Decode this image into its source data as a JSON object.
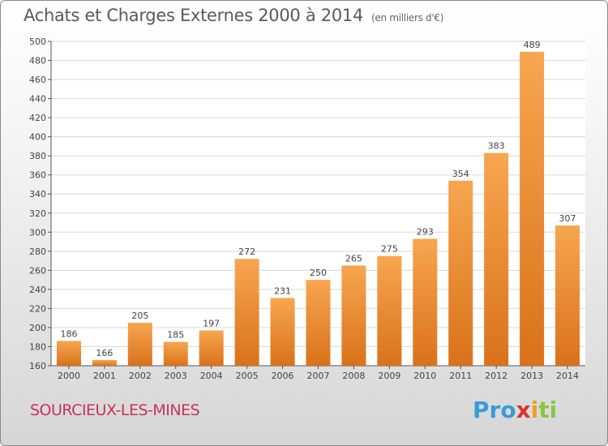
{
  "header": {
    "title": "Achats et Charges Externes 2000 à 2014",
    "subtitle": "(en milliers d'€)"
  },
  "footer": {
    "commune": "SOURCIEUX-LES-MINES",
    "logo_parts": [
      "Pro",
      "x",
      "i",
      "ti"
    ]
  },
  "colors": {
    "bar_light": "#f7a650",
    "bar_dark": "#d9721a",
    "commune_text": "#c8325f"
  },
  "chart_data": {
    "type": "bar",
    "title": "Achats et Charges Externes 2000 à 2014",
    "subtitle": "(en milliers d'€)",
    "xlabel": "",
    "ylabel": "",
    "categories": [
      "2000",
      "2001",
      "2002",
      "2003",
      "2004",
      "2005",
      "2006",
      "2007",
      "2008",
      "2009",
      "2010",
      "2011",
      "2012",
      "2013",
      "2014"
    ],
    "values": [
      186,
      166,
      205,
      185,
      197,
      272,
      231,
      250,
      265,
      275,
      293,
      354,
      383,
      489,
      307
    ],
    "ylim": [
      160,
      500
    ],
    "yticks": [
      160,
      180,
      200,
      220,
      240,
      260,
      280,
      300,
      320,
      340,
      360,
      380,
      400,
      420,
      440,
      460,
      480,
      500
    ],
    "grid": true
  }
}
